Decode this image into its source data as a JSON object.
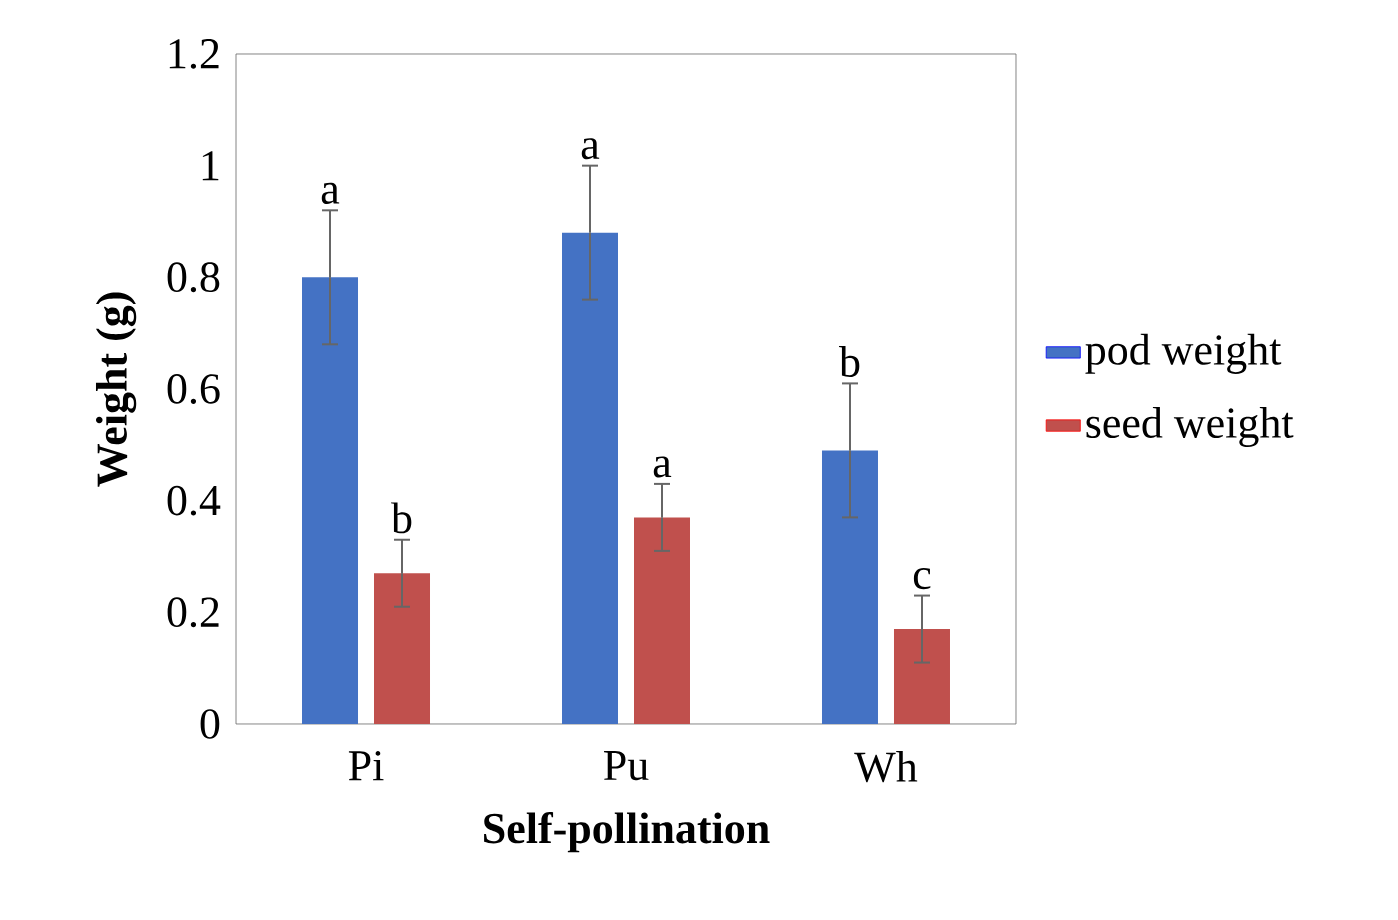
{
  "chart_data": {
    "type": "bar",
    "xlabel": "Self-pollination",
    "ylabel": "Weight (g)",
    "categories": [
      "Pi",
      "Pu",
      "Wh"
    ],
    "series": [
      {
        "name": "pod weight",
        "color": "#4472c4",
        "values": [
          0.8,
          0.88,
          0.49
        ],
        "errors": [
          0.12,
          0.12,
          0.12
        ],
        "value_labels": [
          "a",
          "a",
          "b"
        ]
      },
      {
        "name": "seed weight",
        "color": "#c0504d",
        "values": [
          0.27,
          0.37,
          0.17
        ],
        "errors": [
          0.06,
          0.06,
          0.06
        ],
        "value_labels": [
          "b",
          "a",
          "c"
        ]
      }
    ],
    "ylim": [
      0,
      1.2
    ],
    "yticks": [
      0,
      0.2,
      0.4,
      0.6,
      0.8,
      1,
      1.2
    ],
    "grid": false,
    "legend": "right"
  }
}
